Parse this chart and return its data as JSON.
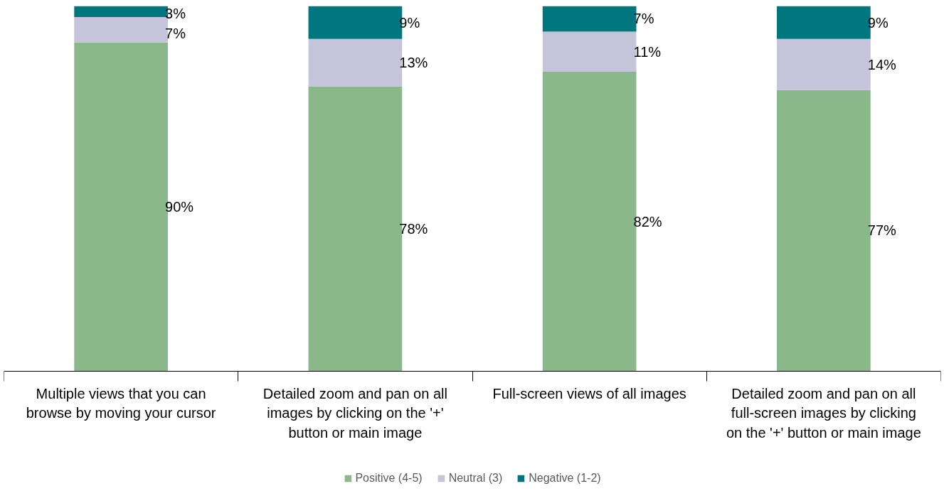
{
  "chart_data": {
    "type": "bar",
    "stacked": true,
    "legend": "bottom",
    "grid": false,
    "categories": [
      "Multiple views that you can browse by moving your cursor",
      "Detailed zoom and pan on all images by clicking on the '+' button or main image",
      "Full-screen views of all images",
      "Detailed zoom and pan on all full-screen images by clicking on the '+' button or main image"
    ],
    "series": [
      {
        "name": "Positive (4-5)",
        "color": "#8ab88a",
        "values": [
          90,
          78,
          82,
          77
        ],
        "value_labels": [
          "90%",
          "78%",
          "82%",
          "77%"
        ]
      },
      {
        "name": "Neutral (3)",
        "color": "#c5c4da",
        "values": [
          7,
          13,
          11,
          14
        ],
        "value_labels": [
          "7%",
          "13%",
          "11%",
          "14%"
        ]
      },
      {
        "name": "Negative (1-2)",
        "color": "#00767e",
        "values": [
          3,
          9,
          7,
          9
        ],
        "value_labels": [
          "3%",
          "9%",
          "7%",
          "9%"
        ]
      }
    ]
  }
}
